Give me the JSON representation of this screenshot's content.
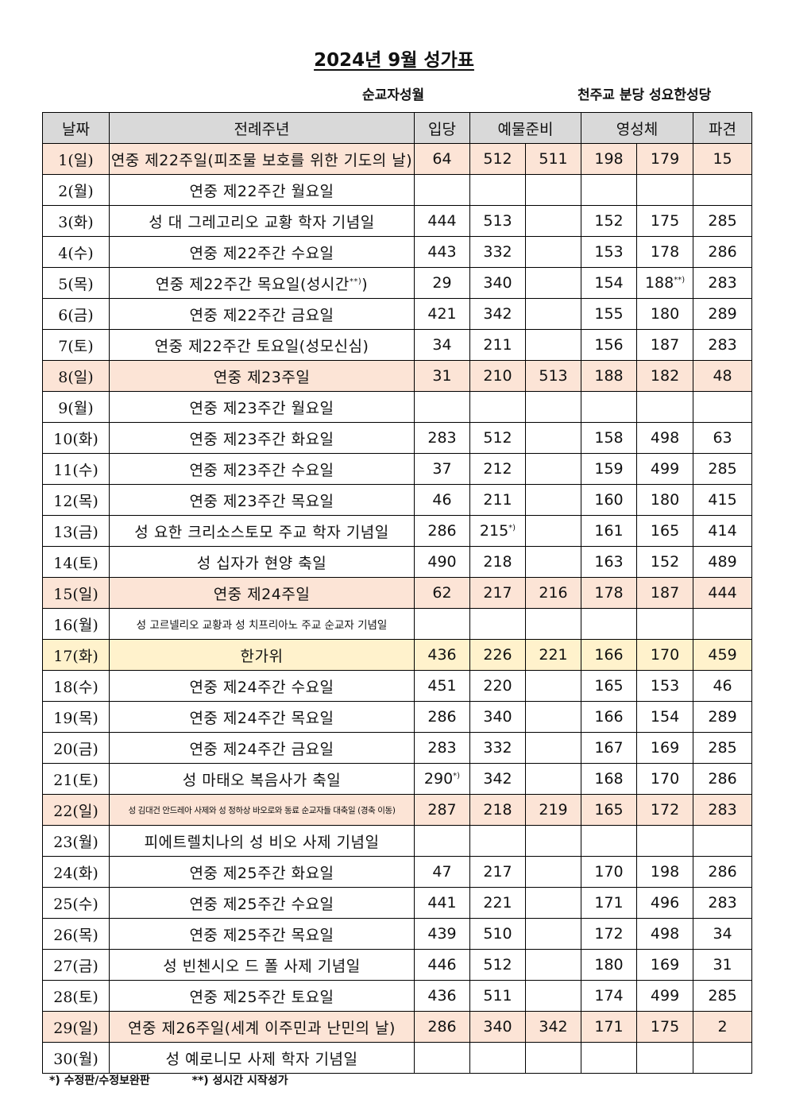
{
  "title": "2024년 9월 성가표",
  "subtitle": "순교자성월",
  "parish": "천주교 분당 성요한성당",
  "headers": {
    "date": "날짜",
    "season": "전례주년",
    "entrance": "입당",
    "offertory": "예물준비",
    "communion": "영성체",
    "recessional": "파견"
  },
  "rows": [
    {
      "date": "1(일)",
      "name": "연중 제22주일(피조물 보호를 위한 기도의 날)",
      "entrance": "64",
      "offertory1": "512",
      "offertory2": "511",
      "communion1": "198",
      "communion2": "179",
      "recessional": "15",
      "highlight": "sunday"
    },
    {
      "date": "2(월)",
      "name": "연중 제22주간 월요일",
      "entrance": "",
      "offertory1": "",
      "offertory2": "",
      "communion1": "",
      "communion2": "",
      "recessional": ""
    },
    {
      "date": "3(화)",
      "name": "성 대 그레고리오 교황 학자 기념일",
      "entrance": "444",
      "offertory1": "513",
      "offertory2": "",
      "communion1": "152",
      "communion2": "175",
      "recessional": "285"
    },
    {
      "date": "4(수)",
      "name": "연중 제22주간 수요일",
      "entrance": "443",
      "offertory1": "332",
      "offertory2": "",
      "communion1": "153",
      "communion2": "178",
      "recessional": "286"
    },
    {
      "date": "5(목)",
      "name": "연중 제22주간 목요일(성시간",
      "name_sup": "**)",
      "name_after": ")",
      "entrance": "29",
      "offertory1": "340",
      "offertory2": "",
      "communion1": "154",
      "communion2": "188",
      "communion2_sup": "**)",
      "recessional": "283"
    },
    {
      "date": "6(금)",
      "name": "연중 제22주간 금요일",
      "entrance": "421",
      "offertory1": "342",
      "offertory2": "",
      "communion1": "155",
      "communion2": "180",
      "recessional": "289"
    },
    {
      "date": "7(토)",
      "name": "연중 제22주간 토요일(성모신심)",
      "entrance": "34",
      "offertory1": "211",
      "offertory2": "",
      "communion1": "156",
      "communion2": "187",
      "recessional": "283"
    },
    {
      "date": "8(일)",
      "name": "연중 제23주일",
      "entrance": "31",
      "offertory1": "210",
      "offertory2": "513",
      "communion1": "188",
      "communion2": "182",
      "recessional": "48",
      "highlight": "sunday"
    },
    {
      "date": "9(월)",
      "name": "연중 제23주간 월요일",
      "entrance": "",
      "offertory1": "",
      "offertory2": "",
      "communion1": "",
      "communion2": "",
      "recessional": ""
    },
    {
      "date": "10(화)",
      "name": "연중 제23주간 화요일",
      "entrance": "283",
      "offertory1": "512",
      "offertory2": "",
      "communion1": "158",
      "communion2": "498",
      "recessional": "63"
    },
    {
      "date": "11(수)",
      "name": "연중 제23주간 수요일",
      "entrance": "37",
      "offertory1": "212",
      "offertory2": "",
      "communion1": "159",
      "communion2": "499",
      "recessional": "285"
    },
    {
      "date": "12(목)",
      "name": "연중 제23주간 목요일",
      "entrance": "46",
      "offertory1": "211",
      "offertory2": "",
      "communion1": "160",
      "communion2": "180",
      "recessional": "415"
    },
    {
      "date": "13(금)",
      "name": "성 요한 크리소스토모 주교 학자 기념일",
      "entrance": "286",
      "offertory1": "215",
      "offertory1_sup": "*)",
      "offertory2": "",
      "communion1": "161",
      "communion2": "165",
      "recessional": "414"
    },
    {
      "date": "14(토)",
      "name": "성 십자가 현양 축일",
      "entrance": "490",
      "offertory1": "218",
      "offertory2": "",
      "communion1": "163",
      "communion2": "152",
      "recessional": "489"
    },
    {
      "date": "15(일)",
      "name": "연중 제24주일",
      "entrance": "62",
      "offertory1": "217",
      "offertory2": "216",
      "communion1": "178",
      "communion2": "187",
      "recessional": "444",
      "highlight": "sunday"
    },
    {
      "date": "16(월)",
      "name": "성 고르넬리오 교황과 성 치프리아노 주교 순교자 기념일",
      "name_size": "small",
      "entrance": "",
      "offertory1": "",
      "offertory2": "",
      "communion1": "",
      "communion2": "",
      "recessional": ""
    },
    {
      "date": "17(화)",
      "name": "한가위",
      "entrance": "436",
      "offertory1": "226",
      "offertory2": "221",
      "communion1": "166",
      "communion2": "170",
      "recessional": "459",
      "highlight": "holiday"
    },
    {
      "date": "18(수)",
      "name": "연중 제24주간 수요일",
      "entrance": "451",
      "offertory1": "220",
      "offertory2": "",
      "communion1": "165",
      "communion2": "153",
      "recessional": "46"
    },
    {
      "date": "19(목)",
      "name": "연중 제24주간 목요일",
      "entrance": "286",
      "offertory1": "340",
      "offertory2": "",
      "communion1": "166",
      "communion2": "154",
      "recessional": "289"
    },
    {
      "date": "20(금)",
      "name": "연중 제24주간 금요일",
      "entrance": "283",
      "offertory1": "332",
      "offertory2": "",
      "communion1": "167",
      "communion2": "169",
      "recessional": "285"
    },
    {
      "date": "21(토)",
      "name": "성 마태오 복음사가 축일",
      "entrance": "290",
      "entrance_sup": "*)",
      "offertory1": "342",
      "offertory2": "",
      "communion1": "168",
      "communion2": "170",
      "recessional": "286"
    },
    {
      "date": "22(일)",
      "name": "성 김대건 안드레아 사제와 성 정하상 바오로와 동료 순교자들 대축일 (경축 이동)",
      "name_size": "tiny",
      "entrance": "287",
      "offertory1": "218",
      "offertory2": "219",
      "communion1": "165",
      "communion2": "172",
      "recessional": "283",
      "highlight": "sunday"
    },
    {
      "date": "23(월)",
      "name": "피에트렐치나의 성 비오 사제 기념일",
      "entrance": "",
      "offertory1": "",
      "offertory2": "",
      "communion1": "",
      "communion2": "",
      "recessional": ""
    },
    {
      "date": "24(화)",
      "name": "연중 제25주간 화요일",
      "entrance": "47",
      "offertory1": "217",
      "offertory2": "",
      "communion1": "170",
      "communion2": "198",
      "recessional": "286"
    },
    {
      "date": "25(수)",
      "name": "연중 제25주간 수요일",
      "entrance": "441",
      "offertory1": "221",
      "offertory2": "",
      "communion1": "171",
      "communion2": "496",
      "recessional": "283"
    },
    {
      "date": "26(목)",
      "name": "연중 제25주간 목요일",
      "entrance": "439",
      "offertory1": "510",
      "offertory2": "",
      "communion1": "172",
      "communion2": "498",
      "recessional": "34"
    },
    {
      "date": "27(금)",
      "name": "성 빈첸시오 드 폴 사제 기념일",
      "entrance": "446",
      "offertory1": "512",
      "offertory2": "",
      "communion1": "180",
      "communion2": "169",
      "recessional": "31"
    },
    {
      "date": "28(토)",
      "name": "연중 제25주간 토요일",
      "entrance": "436",
      "offertory1": "511",
      "offertory2": "",
      "communion1": "174",
      "communion2": "499",
      "recessional": "285"
    },
    {
      "date": "29(일)",
      "name": "연중 제26주일(세계 이주민과 난민의 날)",
      "entrance": "286",
      "offertory1": "340",
      "offertory2": "342",
      "communion1": "171",
      "communion2": "175",
      "recessional": "2",
      "highlight": "sunday"
    },
    {
      "date": "30(월)",
      "name": "성 예로니모 사제 학자 기념일",
      "entrance": "",
      "offertory1": "",
      "offertory2": "",
      "communion1": "",
      "communion2": "",
      "recessional": ""
    }
  ],
  "footnotes": {
    "note1": "*) 수정판/수정보완판",
    "note2": "**) 성시간 시작성가"
  },
  "colors": {
    "sunday_bg": "#fce4d6",
    "holiday_bg": "#fff2cc",
    "header_bg": "#d9d9d9"
  }
}
